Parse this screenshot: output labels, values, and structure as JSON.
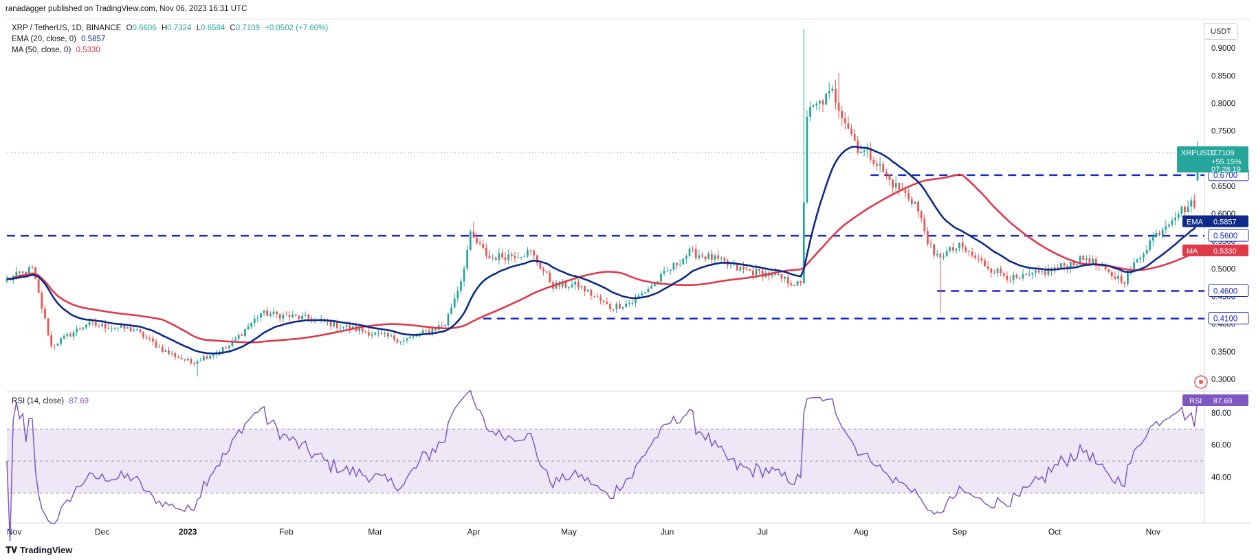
{
  "header": {
    "published": "ranadagger published on TradingView.com, Nov 06, 2023 16:31 UTC",
    "symbol_line": "XRP / TetherUS, 1D, BINANCE",
    "ohlc": {
      "o_label": "O",
      "o": "0.6606",
      "h_label": "H",
      "h": "0.7324",
      "l_label": "L",
      "l": "0.6584",
      "c_label": "C",
      "c": "0.7109",
      "change": "+0.0502 (+7.60%)"
    },
    "ema_label": "EMA (20, close, 0)",
    "ema_value": "0.5857",
    "ma_label": "MA (50, close, 0)",
    "ma_value": "0.5330",
    "rsi_label": "RSI (14, close)",
    "rsi_value": "87.69"
  },
  "currency_button": "USDT",
  "footer_brand": "TradingView",
  "colors": {
    "up": "#26a69a",
    "down": "#ef5350",
    "ema": "#0d2a8a",
    "ma": "#e0394a",
    "level": "#1a2ac8",
    "rsi": "#7e57c2",
    "rsi_band": "#ede7f6",
    "axis_text": "#131722"
  },
  "chart_data": {
    "type": "candlestick",
    "x_labels": [
      "Nov",
      "Dec",
      "2023",
      "Feb",
      "Mar",
      "Apr",
      "May",
      "Jun",
      "Jul",
      "Aug",
      "Sep",
      "Oct",
      "Nov"
    ],
    "y_ticks": [
      "0.9000",
      "0.8500",
      "0.8000",
      "0.7500",
      "0.7000",
      "0.6500",
      "0.6000",
      "0.5500",
      "0.5000",
      "0.4500",
      "0.4000",
      "0.3500",
      "0.3000"
    ],
    "ylim": [
      0.28,
      0.95
    ],
    "anchors": [
      [
        0,
        0.48
      ],
      [
        8,
        0.5
      ],
      [
        14,
        0.36
      ],
      [
        25,
        0.4
      ],
      [
        40,
        0.39
      ],
      [
        50,
        0.35
      ],
      [
        58,
        0.33
      ],
      [
        70,
        0.36
      ],
      [
        80,
        0.42
      ],
      [
        95,
        0.41
      ],
      [
        110,
        0.39
      ],
      [
        125,
        0.37
      ],
      [
        138,
        0.4
      ],
      [
        143,
        0.48
      ],
      [
        146,
        0.56
      ],
      [
        152,
        0.52
      ],
      [
        165,
        0.53
      ],
      [
        172,
        0.47
      ],
      [
        180,
        0.47
      ],
      [
        190,
        0.43
      ],
      [
        197,
        0.44
      ],
      [
        205,
        0.48
      ],
      [
        215,
        0.53
      ],
      [
        222,
        0.52
      ],
      [
        230,
        0.5
      ],
      [
        240,
        0.49
      ],
      [
        250,
        0.47
      ],
      [
        252,
        0.78
      ],
      [
        260,
        0.82
      ],
      [
        268,
        0.72
      ],
      [
        273,
        0.7
      ],
      [
        278,
        0.66
      ],
      [
        286,
        0.62
      ],
      [
        292,
        0.52
      ],
      [
        300,
        0.54
      ],
      [
        310,
        0.5
      ],
      [
        318,
        0.48
      ],
      [
        330,
        0.5
      ],
      [
        340,
        0.52
      ],
      [
        347,
        0.49
      ],
      [
        352,
        0.48
      ],
      [
        360,
        0.55
      ],
      [
        368,
        0.6
      ],
      [
        374,
        0.62
      ],
      [
        375,
        0.6606
      ]
    ],
    "last_candle": {
      "open": 0.6606,
      "high": 0.7324,
      "low": 0.6584,
      "close": 0.7109
    },
    "spikes": [
      {
        "i": 251,
        "high": 0.935
      },
      {
        "i": 262,
        "high": 0.855
      },
      {
        "i": 294,
        "low": 0.42
      },
      {
        "i": 147,
        "high": 0.585
      },
      {
        "i": 60,
        "low": 0.305
      }
    ],
    "ema_last": 0.5857,
    "ma_last": 0.533,
    "levels": [
      {
        "value": 0.67,
        "label": "0.6700",
        "start_day": 272
      },
      {
        "value": 0.56,
        "label": "0.5600",
        "start_day": 0
      },
      {
        "value": 0.46,
        "label": "0.4600",
        "start_day": 293
      },
      {
        "value": 0.41,
        "label": "0.4100",
        "start_day": 150
      }
    ],
    "price_tag": {
      "name": "XRPUSDT",
      "price": "0.7109",
      "change": "+55.15%",
      "timer": "07:28:19",
      "value": 0.7109
    },
    "ema_tag": {
      "name": "EMA",
      "value": "0.5857"
    },
    "ma_tag": {
      "name": "MA",
      "value": "0.5330"
    },
    "rsi": {
      "ylim": [
        20,
        92
      ],
      "ticks": [
        "80.00",
        "60.00",
        "40.00"
      ],
      "bands": [
        30,
        50,
        70
      ],
      "last": 87.69,
      "tag": "RSI",
      "tag_value": "87.69"
    }
  }
}
